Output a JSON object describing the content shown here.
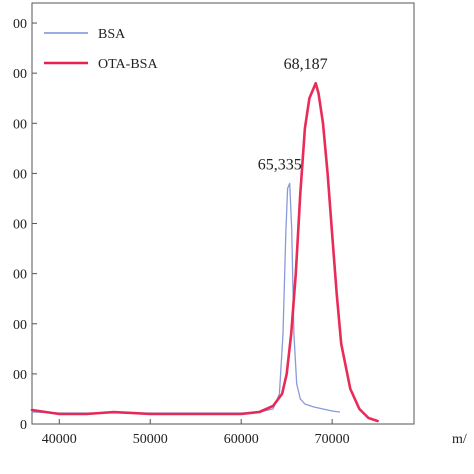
{
  "chart_data": {
    "type": "line",
    "title": "",
    "xlabel": "m/",
    "ylabel": "",
    "xlim": [
      37000,
      79000
    ],
    "ylim": [
      0,
      420
    ],
    "x_ticks": [
      40000,
      50000,
      60000,
      70000
    ],
    "x_tick_labels": [
      "40000",
      "50000",
      "60000",
      "70000"
    ],
    "y_ticks": [
      0,
      50,
      100,
      150,
      200,
      250,
      300,
      350,
      400
    ],
    "y_tick_labels": [
      "0",
      "00",
      "00",
      "00",
      "00",
      "00",
      "00",
      "00",
      "00"
    ],
    "grid": false,
    "legend_position": "top-left",
    "series": [
      {
        "name": "BSA",
        "color": "#7b8fd6",
        "x": [
          37000,
          40000,
          45000,
          50000,
          55000,
          60000,
          62000,
          63500,
          64200,
          64600,
          64900,
          65100,
          65335,
          65550,
          65800,
          66100,
          66500,
          67000,
          68000,
          69000,
          70000,
          70800
        ],
        "y": [
          12,
          11,
          11,
          11,
          11,
          11,
          12,
          15,
          30,
          90,
          190,
          235,
          240,
          195,
          90,
          40,
          25,
          20,
          17,
          15,
          13,
          12
        ]
      },
      {
        "name": "OTA-BSA",
        "color": "#e8204f",
        "x": [
          37000,
          40000,
          43000,
          46000,
          50000,
          55000,
          60000,
          62000,
          63500,
          64500,
          65000,
          65500,
          66000,
          66500,
          67000,
          67500,
          68187,
          68500,
          69000,
          69500,
          70000,
          70500,
          71000,
          72000,
          73000,
          74000,
          75000
        ],
        "y": [
          14,
          10,
          10,
          12,
          10,
          10,
          10,
          12,
          18,
          30,
          50,
          90,
          150,
          230,
          295,
          325,
          340,
          330,
          300,
          250,
          190,
          130,
          80,
          35,
          15,
          6,
          3
        ]
      }
    ],
    "legend": [
      "BSA",
      "OTA-BSA"
    ],
    "annotations": [
      {
        "text": "65,335",
        "x": 65335,
        "y": 240
      },
      {
        "text": "68,187",
        "x": 68187,
        "y": 340
      }
    ]
  }
}
